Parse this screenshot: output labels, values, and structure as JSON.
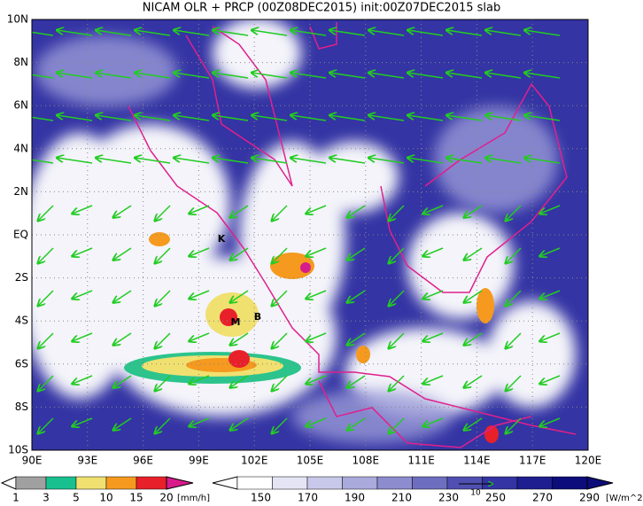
{
  "title": "NICAM OLR + PRCP (00Z08DEC2015) init:00Z07DEC2015 slab",
  "map": {
    "lat_labels": [
      "10N",
      "8N",
      "6N",
      "4N",
      "2N",
      "EQ",
      "2S",
      "4S",
      "6S",
      "8S",
      "10S"
    ],
    "lon_labels": [
      "90E",
      "93E",
      "96E",
      "99E",
      "102E",
      "105E",
      "108E",
      "111E",
      "114E",
      "117E",
      "120E"
    ],
    "markers": [
      {
        "label": "K"
      },
      {
        "label": "M"
      },
      {
        "label": "B"
      }
    ]
  },
  "precip_legend": {
    "labels": [
      "1",
      "3",
      "5",
      "10",
      "15",
      "20"
    ],
    "unit": "[mm/h]"
  },
  "olr_legend": {
    "labels": [
      "150",
      "170",
      "190",
      "210",
      "230",
      "250",
      "270",
      "290"
    ],
    "unit": "[W/m^2]",
    "vector_label": "10"
  }
}
